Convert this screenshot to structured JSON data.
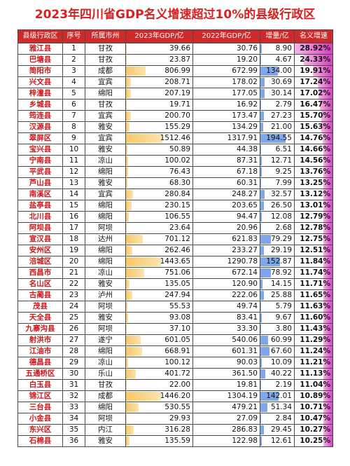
{
  "title": "2023年四川省GDP名义增速超过10%的县级行政区",
  "headers": [
    "县级行政区",
    "序号",
    "所属市州",
    "2023年GDP/亿",
    "2022年GDP/亿",
    "增量/亿",
    "名义增速"
  ],
  "colors": {
    "title": "#d81e1e",
    "header_bg": "#cf2a2a",
    "county_text": "#d01515",
    "gdp_bar": "#f6c766",
    "increment_bar": "#7fa6e8",
    "rate_bar": "#d93cc0"
  },
  "rows": [
    {
      "county": "雅江县",
      "rank": "1",
      "city": "甘孜",
      "gdp2023": "39.66",
      "gdp2022": "30.76",
      "increment": "8.90",
      "rate": "28.92%"
    },
    {
      "county": "巴塘县",
      "rank": "2",
      "city": "甘孜",
      "gdp2023": "23.87",
      "gdp2022": "19.20",
      "increment": "4.67",
      "rate": "24.33%"
    },
    {
      "county": "简阳市",
      "rank": "3",
      "city": "成都",
      "gdp2023": "806.99",
      "gdp2022": "672.99",
      "increment": "134.00",
      "rate": "19.91%"
    },
    {
      "county": "兴文县",
      "rank": "4",
      "city": "宜宾",
      "gdp2023": "208.71",
      "gdp2022": "178.02",
      "increment": "30.69",
      "rate": "17.24%"
    },
    {
      "county": "梓潼县",
      "rank": "5",
      "city": "绵阳",
      "gdp2023": "207.19",
      "gdp2022": "177.05",
      "increment": "30.14",
      "rate": "17.02%"
    },
    {
      "county": "乡城县",
      "rank": "6",
      "city": "甘孜",
      "gdp2023": "19.71",
      "gdp2022": "16.92",
      "increment": "2.79",
      "rate": "16.47%"
    },
    {
      "county": "筠连县",
      "rank": "7",
      "city": "宜宾",
      "gdp2023": "200.70",
      "gdp2022": "173.47",
      "increment": "27.23",
      "rate": "15.70%"
    },
    {
      "county": "汉源县",
      "rank": "8",
      "city": "雅安",
      "gdp2023": "155.29",
      "gdp2022": "134.29",
      "increment": "21.00",
      "rate": "15.63%"
    },
    {
      "county": "翠屏区",
      "rank": "9",
      "city": "宜宾",
      "gdp2023": "1512.46",
      "gdp2022": "1317.91",
      "increment": "194.55",
      "rate": "14.76%"
    },
    {
      "county": "宝兴县",
      "rank": "10",
      "city": "雅安",
      "gdp2023": "50.89",
      "gdp2022": "44.38",
      "increment": "6.51",
      "rate": "14.66%"
    },
    {
      "county": "宁南县",
      "rank": "11",
      "city": "凉山",
      "gdp2023": "100.02",
      "gdp2022": "87.31",
      "increment": "12.71",
      "rate": "14.56%"
    },
    {
      "county": "平武县",
      "rank": "12",
      "city": "绵阳",
      "gdp2023": "76.43",
      "gdp2022": "67.18",
      "increment": "9.25",
      "rate": "13.76%"
    },
    {
      "county": "芦山县",
      "rank": "13",
      "city": "雅安",
      "gdp2023": "68.30",
      "gdp2022": "60.31",
      "increment": "7.99",
      "rate": "13.25%"
    },
    {
      "county": "南溪区",
      "rank": "14",
      "city": "宜宾",
      "gdp2023": "280.84",
      "gdp2022": "248.27",
      "increment": "32.57",
      "rate": "13.12%"
    },
    {
      "county": "盐亭县",
      "rank": "15",
      "city": "绵阳",
      "gdp2023": "230.15",
      "gdp2022": "203.65",
      "increment": "26.50",
      "rate": "13.01%"
    },
    {
      "county": "北川县",
      "rank": "16",
      "city": "绵阳",
      "gdp2023": "106.55",
      "gdp2022": "94.47",
      "increment": "12.08",
      "rate": "12.79%"
    },
    {
      "county": "阿坝县",
      "rank": "17",
      "city": "阿坝",
      "gdp2023": "23.64",
      "gdp2022": "20.96",
      "increment": "2.68",
      "rate": "12.78%"
    },
    {
      "county": "宣汉县",
      "rank": "18",
      "city": "达州",
      "gdp2023": "701.12",
      "gdp2022": "621.83",
      "increment": "79.29",
      "rate": "12.75%"
    },
    {
      "county": "安州区",
      "rank": "19",
      "city": "绵阳",
      "gdp2023": "262.46",
      "gdp2022": "233.27",
      "increment": "29.19",
      "rate": "12.51%"
    },
    {
      "county": "涪城区",
      "rank": "20",
      "city": "绵阳",
      "gdp2023": "1443.65",
      "gdp2022": "1290.78",
      "increment": "152.87",
      "rate": "11.84%"
    },
    {
      "county": "西昌市",
      "rank": "21",
      "city": "凉山",
      "gdp2023": "751.06",
      "gdp2022": "672.14",
      "increment": "78.92",
      "rate": "11.74%"
    },
    {
      "county": "名山区",
      "rank": "22",
      "city": "雅安",
      "gdp2023": "135.05",
      "gdp2022": "120.90",
      "increment": "14.15",
      "rate": "11.71%"
    },
    {
      "county": "古蔺县",
      "rank": "23",
      "city": "泸州",
      "gdp2023": "247.94",
      "gdp2022": "222.06",
      "increment": "25.88",
      "rate": "11.65%"
    },
    {
      "county": "茂县",
      "rank": "24",
      "city": "阿坝",
      "gdp2023": "55.53",
      "gdp2022": "49.74",
      "increment": "5.79",
      "rate": "11.63%"
    },
    {
      "county": "天全县",
      "rank": "25",
      "city": "雅安",
      "gdp2023": "93.08",
      "gdp2022": "83.41",
      "increment": "9.67",
      "rate": "11.60%"
    },
    {
      "county": "九寨沟县",
      "rank": "26",
      "city": "阿坝",
      "gdp2023": "37.10",
      "gdp2022": "33.30",
      "increment": "3.80",
      "rate": "11.43%"
    },
    {
      "county": "射洪市",
      "rank": "27",
      "city": "遂宁",
      "gdp2023": "601.05",
      "gdp2022": "540.06",
      "increment": "60.99",
      "rate": "11.29%"
    },
    {
      "county": "江油市",
      "rank": "28",
      "city": "绵阳",
      "gdp2023": "668.91",
      "gdp2022": "601.31",
      "increment": "67.60",
      "rate": "11.24%"
    },
    {
      "county": "德昌县",
      "rank": "29",
      "city": "凉山",
      "gdp2023": "100.12",
      "gdp2022": "90.03",
      "increment": "10.09",
      "rate": "11.21%"
    },
    {
      "county": "五通桥区",
      "rank": "30",
      "city": "乐山",
      "gdp2023": "401.72",
      "gdp2022": "361.50",
      "increment": "40.22",
      "rate": "11.13%"
    },
    {
      "county": "白玉县",
      "rank": "31",
      "city": "甘孜",
      "gdp2023": "22.00",
      "gdp2022": "19.81",
      "increment": "2.19",
      "rate": "11.04%"
    },
    {
      "county": "锦江区",
      "rank": "32",
      "city": "成都",
      "gdp2023": "1446.20",
      "gdp2022": "1304.19",
      "increment": "142.01",
      "rate": "10.89%"
    },
    {
      "county": "三台县",
      "rank": "33",
      "city": "绵阳",
      "gdp2023": "530.55",
      "gdp2022": "479.21",
      "increment": "51.34",
      "rate": "10.71%"
    },
    {
      "county": "小金县",
      "rank": "34",
      "city": "阿坝",
      "gdp2023": "29.93",
      "gdp2022": "27.09",
      "increment": "2.84",
      "rate": "10.47%"
    },
    {
      "county": "东兴区",
      "rank": "35",
      "city": "内江",
      "gdp2023": "316.28",
      "gdp2022": "286.83",
      "increment": "29.45",
      "rate": "10.27%"
    },
    {
      "county": "石棉县",
      "rank": "36",
      "city": "雅安",
      "gdp2023": "135.59",
      "gdp2022": "122.98",
      "increment": "12.61",
      "rate": "10.25%"
    }
  ]
}
